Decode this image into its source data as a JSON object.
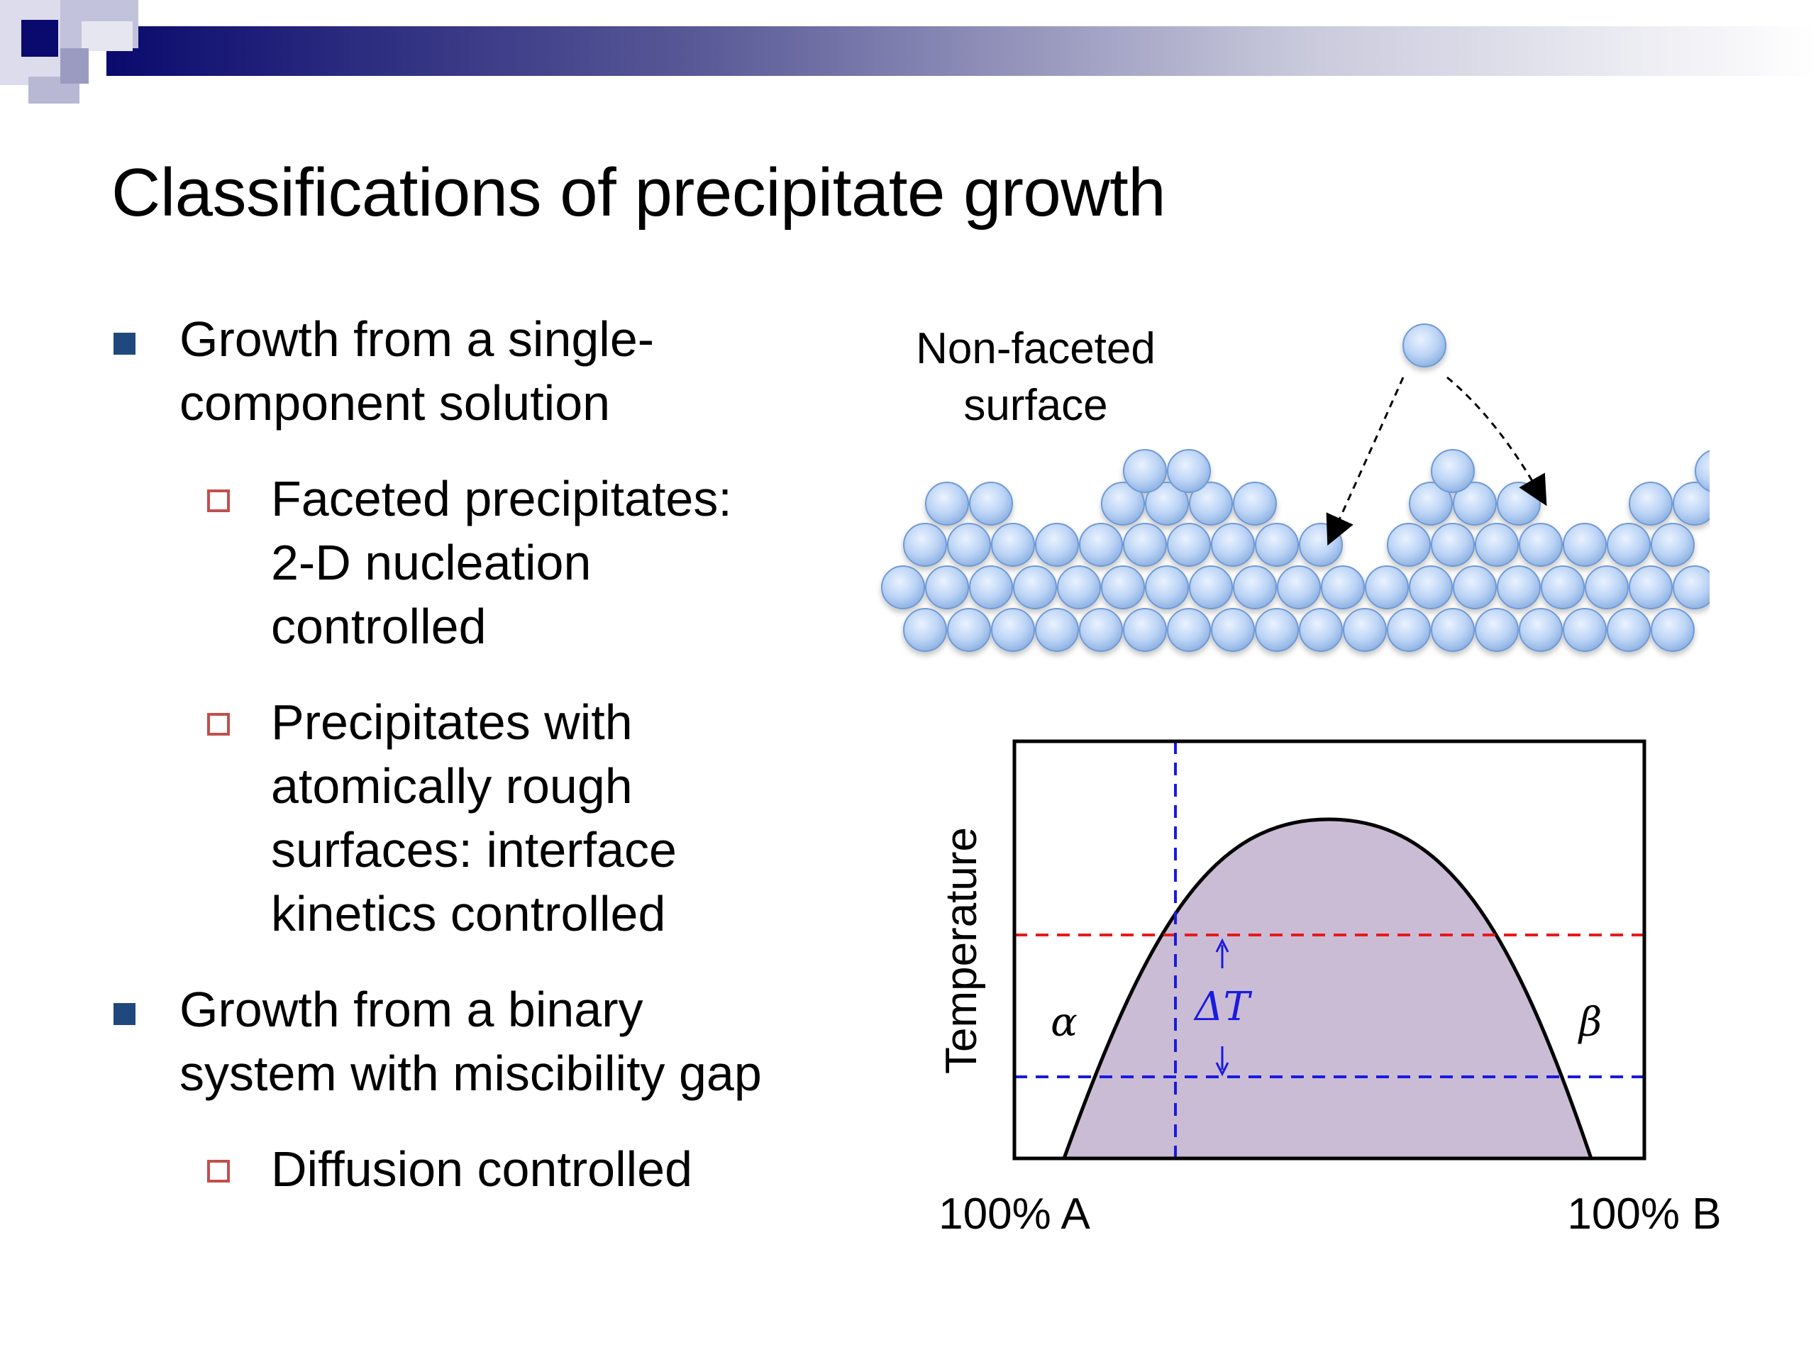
{
  "slide": {
    "title": "Classifications of precipitate growth",
    "colors": {
      "bullet_square": "#1f497d",
      "sub_bullet_square": "#c0504d",
      "header_bar_dark": "#0a0a6e",
      "atom_fill": "#b7d0f4",
      "atom_stroke": "#6f9ad6",
      "miscibility_fill": "#cbbcd5",
      "red_dash": "#e8191c",
      "blue_dash": "#1a1adf"
    }
  },
  "bullets": [
    {
      "lines": [
        "Growth from a single-",
        "component solution"
      ],
      "subs": [
        {
          "lines": [
            "Faceted precipitates:",
            "2-D nucleation",
            "controlled"
          ]
        },
        {
          "lines": [
            "Precipitates with",
            "atomically rough",
            "surfaces: interface",
            "kinetics controlled"
          ]
        }
      ]
    },
    {
      "lines": [
        "Growth from a binary",
        "system with miscibility gap"
      ],
      "subs": [
        {
          "lines": [
            "Diffusion controlled"
          ]
        }
      ]
    }
  ],
  "surface_figure": {
    "label_lines": [
      "Non-faceted",
      "surface"
    ]
  },
  "phase_diagram": {
    "y_axis_label": "Temperature",
    "x_left_label": "100% A",
    "x_right_label": "100% B",
    "alpha_label": "α",
    "beta_label": "β",
    "delta_t_label": "ΔT"
  }
}
